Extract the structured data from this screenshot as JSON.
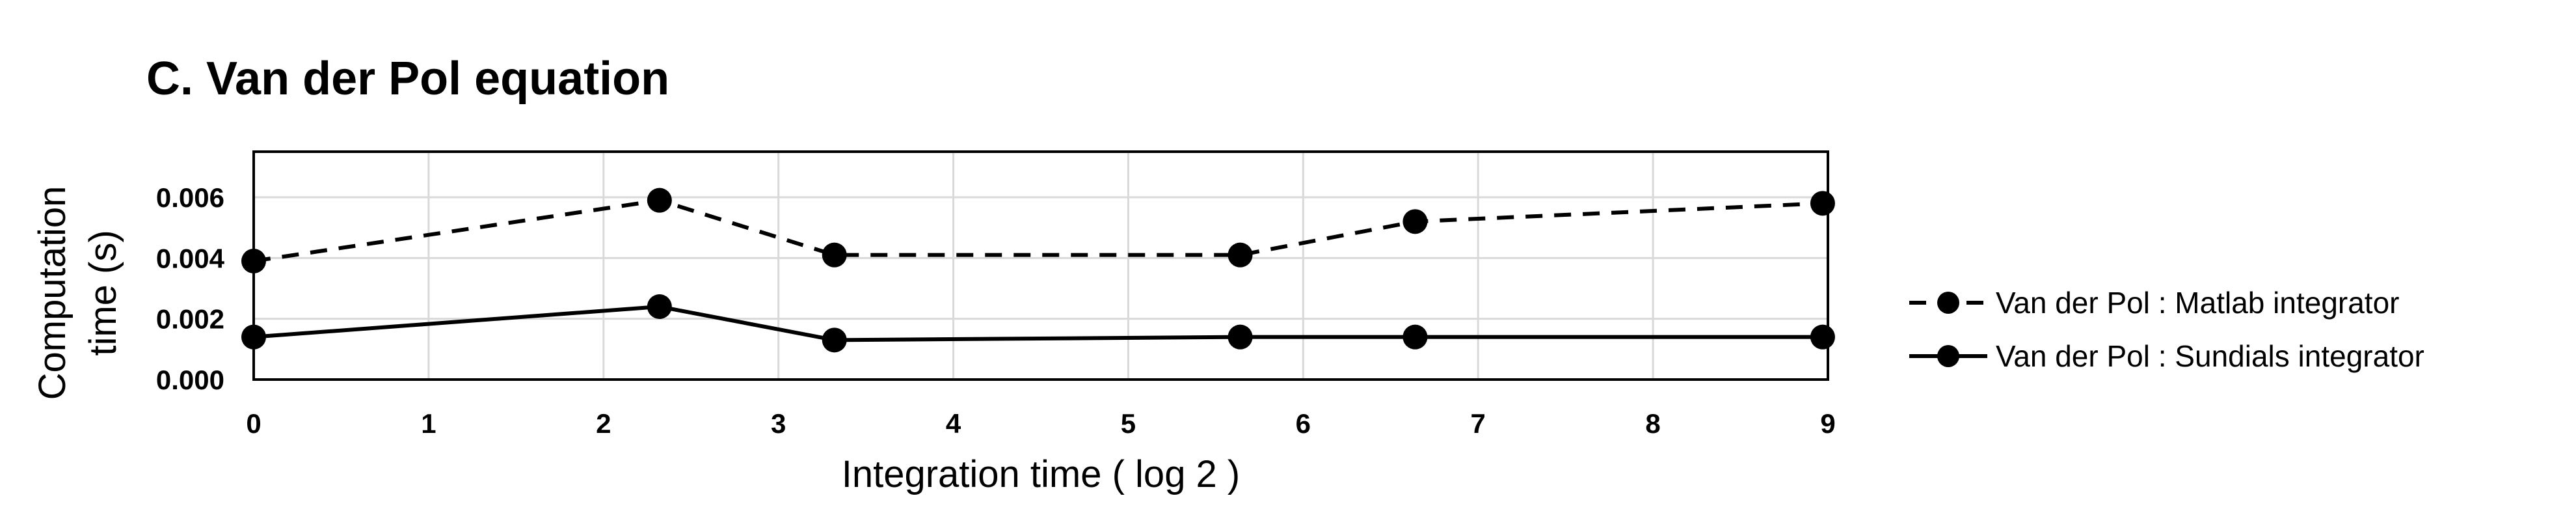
{
  "chart_data": {
    "type": "line",
    "title": "C. Van der Pol equation",
    "xlabel": "Integration time ( log 2 )",
    "ylabel_lines": [
      "Computation",
      "time (s)"
    ],
    "x_ticks": [
      "0",
      "1",
      "2",
      "3",
      "4",
      "5",
      "6",
      "7",
      "8",
      "9"
    ],
    "y_ticks": [
      "0.000",
      "0.002",
      "0.004",
      "0.006"
    ],
    "xlim": [
      0,
      9
    ],
    "ylim": [
      0,
      0.0075
    ],
    "grid": true,
    "legend_position": "right",
    "series": [
      {
        "name": "Van der Pol : Matlab integrator",
        "line_style": "dashed",
        "color": "#000000",
        "points": [
          {
            "x": 0,
            "y": 0.0039
          },
          {
            "x": 2.32,
            "y": 0.0059
          },
          {
            "x": 3.32,
            "y": 0.0041
          },
          {
            "x": 5.64,
            "y": 0.0041
          },
          {
            "x": 6.64,
            "y": 0.0052
          },
          {
            "x": 8.97,
            "y": 0.0058
          }
        ]
      },
      {
        "name": "Van der Pol : Sundials integrator",
        "line_style": "solid",
        "color": "#000000",
        "points": [
          {
            "x": 0,
            "y": 0.0014
          },
          {
            "x": 2.32,
            "y": 0.0024
          },
          {
            "x": 3.32,
            "y": 0.0013
          },
          {
            "x": 5.64,
            "y": 0.0014
          },
          {
            "x": 6.64,
            "y": 0.0014
          },
          {
            "x": 8.97,
            "y": 0.0014
          }
        ]
      }
    ]
  }
}
